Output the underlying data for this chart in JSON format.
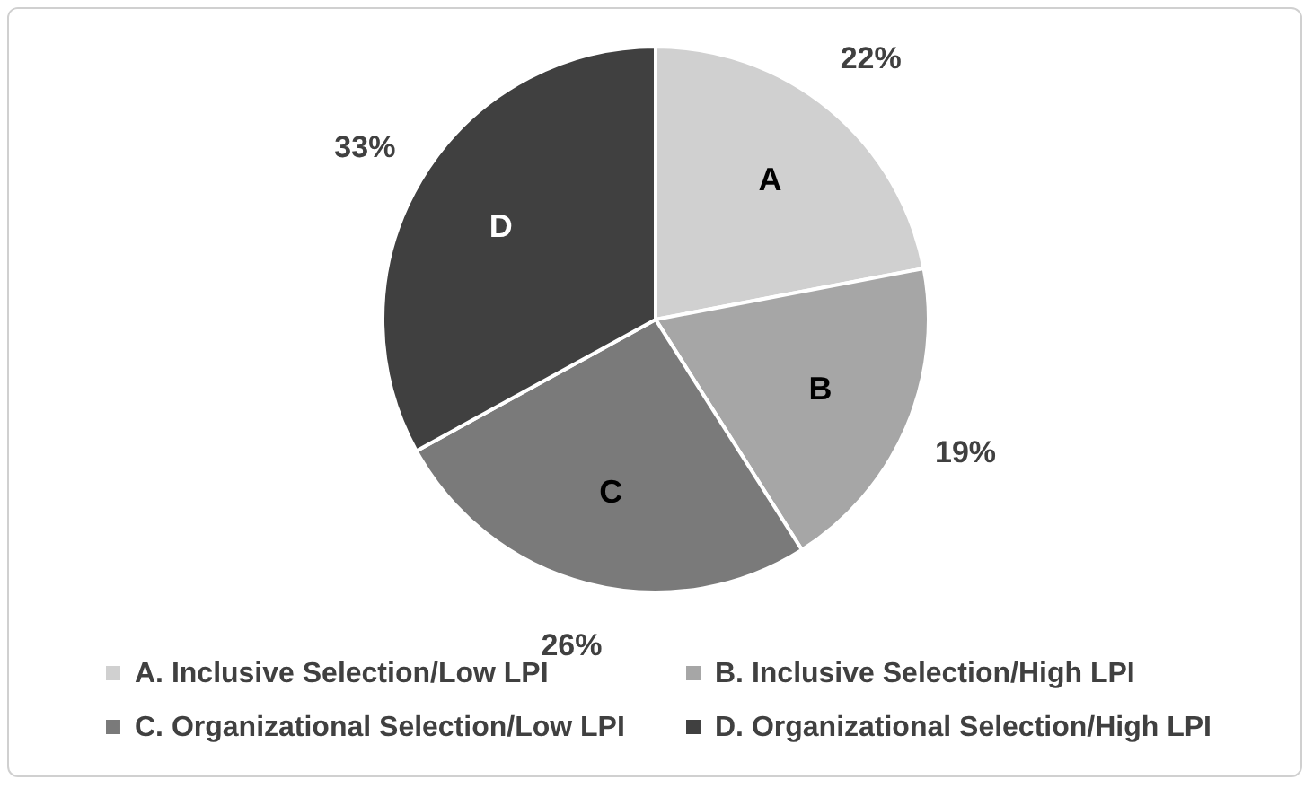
{
  "chart_data": {
    "type": "pie",
    "categories": [
      "A. Inclusive Selection/Low LPI",
      "B. Inclusive Selection/High LPI",
      "C. Organizational Selection/Low LPI",
      "D. Organizational Selection/High LPI"
    ],
    "values": [
      22,
      19,
      26,
      33
    ],
    "colors": [
      "#d0d0d0",
      "#a6a6a6",
      "#7a7a7a",
      "#404040"
    ],
    "value_labels": [
      "22%",
      "19%",
      "26%",
      "33%"
    ],
    "annotations": [
      "A",
      "B",
      "C",
      "D"
    ],
    "legend": "bottom"
  }
}
